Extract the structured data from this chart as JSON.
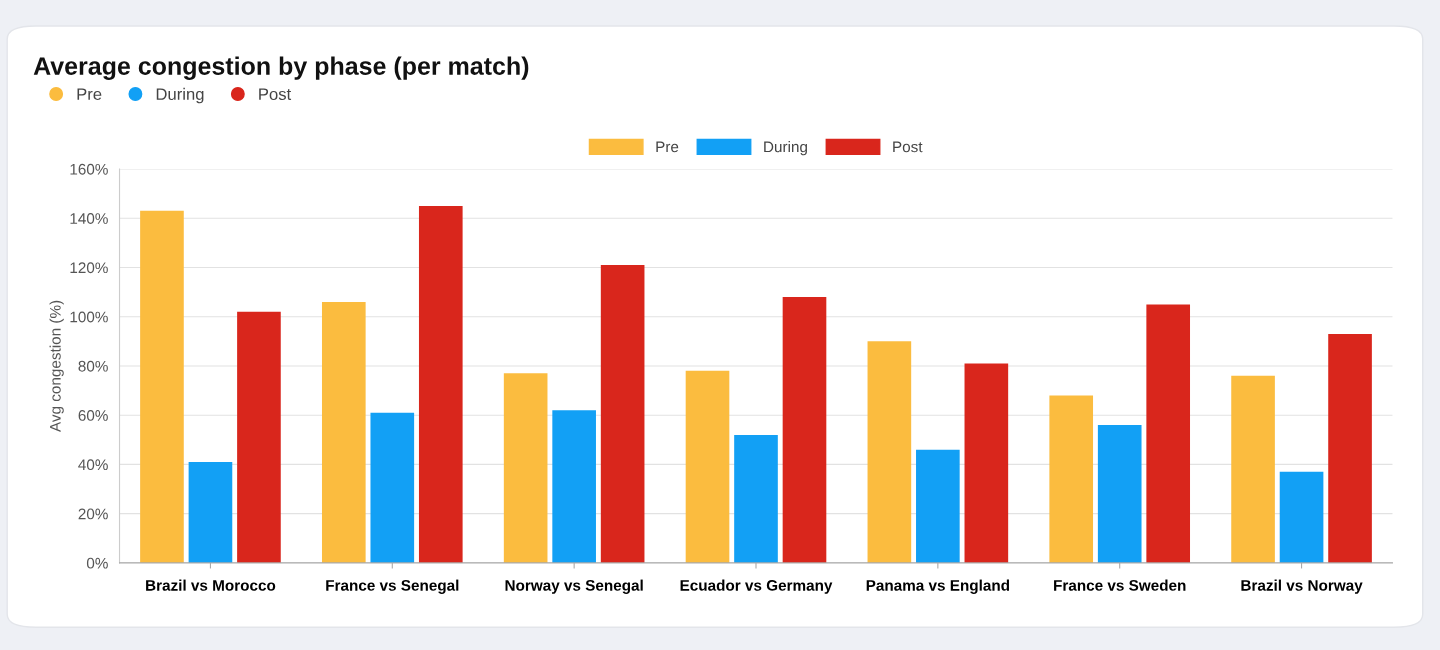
{
  "chart_data": {
    "type": "bar",
    "title": "Average congestion by phase (per match)",
    "ylabel": "Avg congestion (%)",
    "categories": [
      "Brazil vs Morocco",
      "France vs Senegal",
      "Norway vs Senegal",
      "Ecuador vs Germany",
      "Panama vs England",
      "France vs Sweden",
      "Brazil vs Norway"
    ],
    "series": [
      {
        "name": "Pre",
        "color": "#fbbc3f",
        "values": [
          143,
          106,
          77,
          78,
          90,
          68,
          76
        ]
      },
      {
        "name": "During",
        "color": "#12a0f5",
        "values": [
          41,
          61,
          62,
          52,
          46,
          56,
          37
        ]
      },
      {
        "name": "Post",
        "color": "#d9261c",
        "values": [
          102,
          145,
          121,
          108,
          81,
          105,
          93
        ]
      }
    ],
    "ylim": [
      0,
      160
    ],
    "yticks": [
      {
        "value": 0,
        "label": "0%"
      },
      {
        "value": 20,
        "label": "20%"
      },
      {
        "value": 40,
        "label": "40%"
      },
      {
        "value": 60,
        "label": "60%"
      },
      {
        "value": 80,
        "label": "80%"
      },
      {
        "value": 100,
        "label": "100%"
      },
      {
        "value": 120,
        "label": "120%"
      },
      {
        "value": 140,
        "label": "140%"
      },
      {
        "value": 160,
        "label": "160%"
      }
    ],
    "grid": "y",
    "legend": "top"
  }
}
